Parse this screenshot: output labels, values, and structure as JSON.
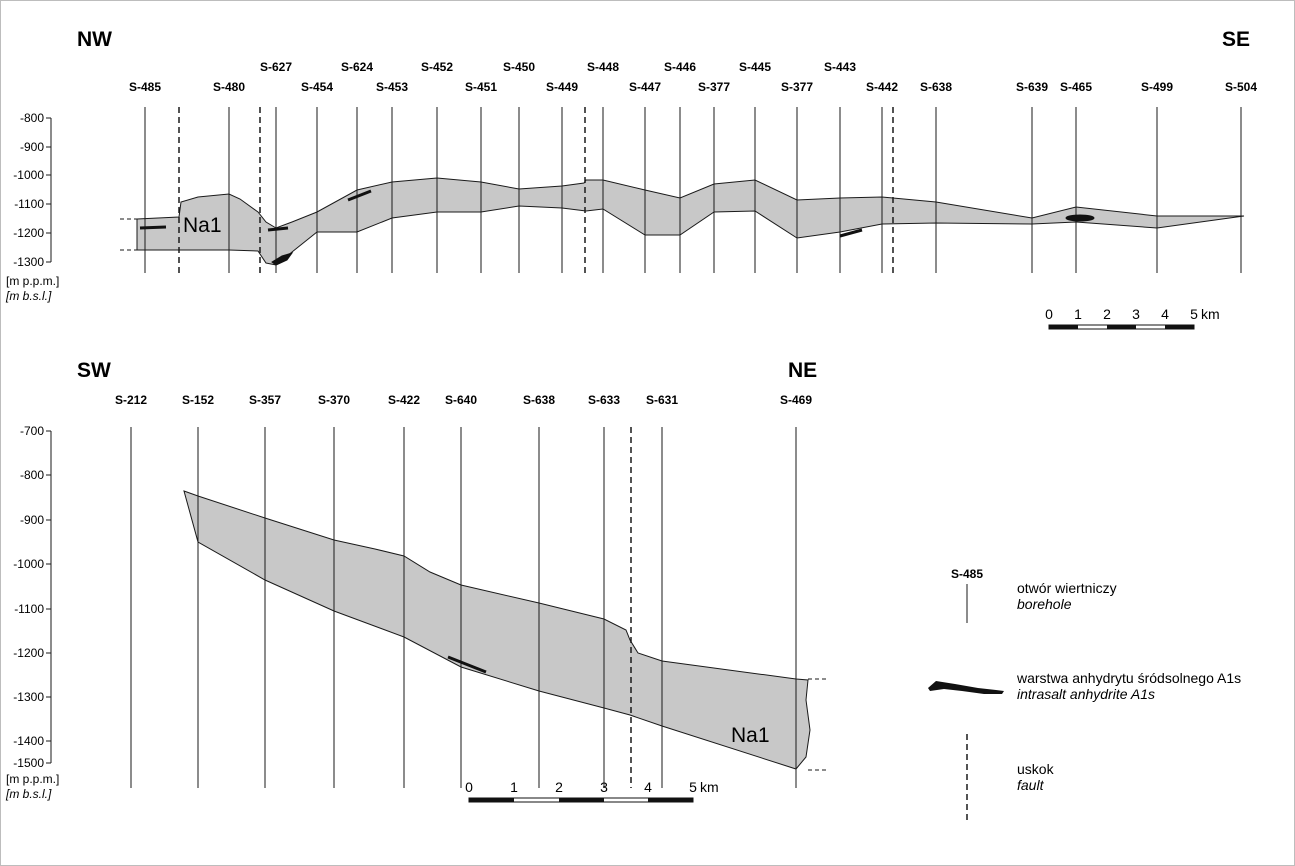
{
  "section_top": {
    "left_direction": "NW",
    "right_direction": "SE",
    "boreholes": [
      "S-485",
      "S-480",
      "S-627",
      "S-454",
      "S-624",
      "S-453",
      "S-452",
      "S-451",
      "S-450",
      "S-449",
      "S-448",
      "S-447",
      "S-446",
      "S-377",
      "S-445",
      "S-377",
      "S-443",
      "S-442",
      "S-638",
      "S-639",
      "S-465",
      "S-499",
      "S-504"
    ],
    "depth_ticks": [
      "-800",
      "-900",
      "-1000",
      "-1100",
      "-1200",
      "-1300"
    ],
    "unit_pl": "[m p.p.m.]",
    "unit_en": "[m b.s.l.]",
    "layer_label": "Na1",
    "scale_labels": [
      "0",
      "1",
      "2",
      "3",
      "4",
      "5"
    ],
    "scale_unit": "km"
  },
  "section_bottom": {
    "left_direction": "SW",
    "right_direction": "NE",
    "boreholes": [
      "S-212",
      "S-152",
      "S-357",
      "S-370",
      "S-422",
      "S-640",
      "S-638",
      "S-633",
      "S-631",
      "S-469"
    ],
    "depth_ticks": [
      "-700",
      "-800",
      "-900",
      "-1000",
      "-1100",
      "-1200",
      "-1300",
      "-1400",
      "-1500"
    ],
    "unit_pl": "[m p.p.m.]",
    "unit_en": "[m b.s.l.]",
    "layer_label": "Na1",
    "scale_labels": [
      "0",
      "1",
      "2",
      "3",
      "4",
      "5"
    ],
    "scale_unit": "km"
  },
  "legend": {
    "borehole_sample": "S-485",
    "borehole_pl": "otwór wiertniczy",
    "borehole_en": "borehole",
    "anhydrite_pl": "warstwa anhydrytu śródsolnego A1s",
    "anhydrite_en": "intrasalt anhydrite A1s",
    "fault_pl": "uskok",
    "fault_en": "fault"
  },
  "colors": {
    "salt_fill": "#c8c8c8",
    "anhydrite": "#111111",
    "lines": "#1a1a1a"
  }
}
